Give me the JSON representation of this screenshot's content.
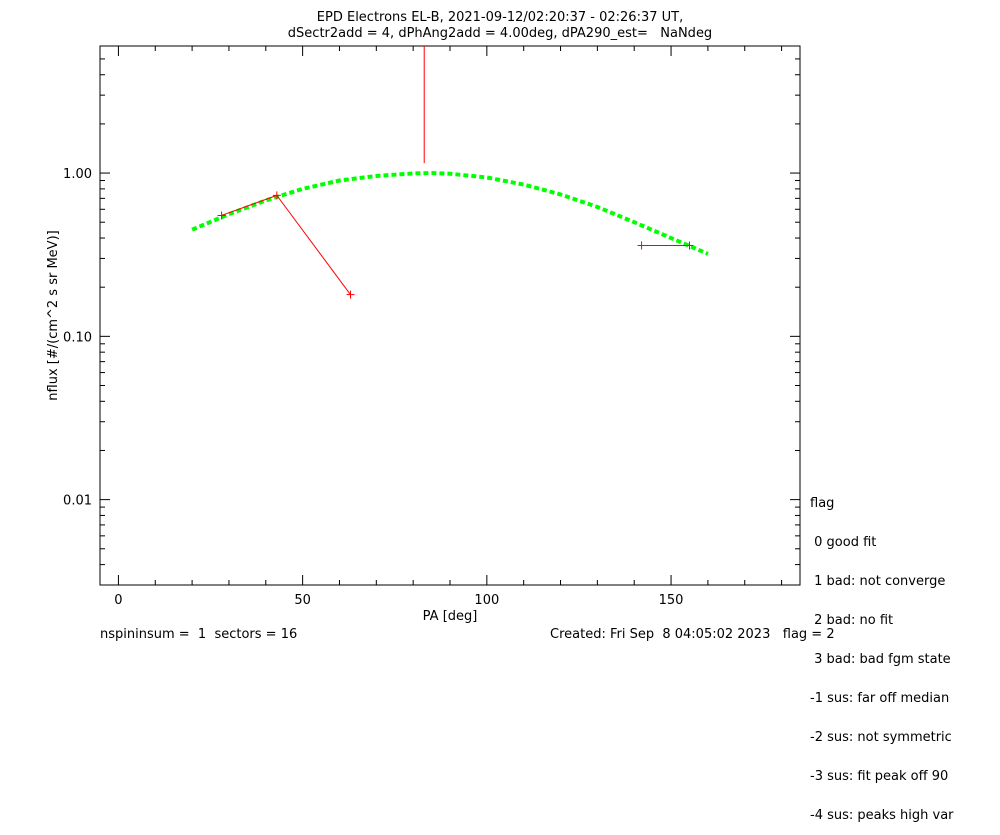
{
  "chart_data": {
    "type": "scatter",
    "title_line1": "EPD Electrons EL-B, 2021-09-12/02:20:37 - 02:26:37 UT,",
    "title_line2": "dSectr2add = 4, dPhAng2add = 4.00deg, dPA290_est=   NaNdeg",
    "xlabel": "PA [deg]",
    "ylabel": "nflux [#/(cm^2 s sr MeV)]",
    "xlim": [
      -5,
      185
    ],
    "ylim": [
      0.003,
      6.0
    ],
    "y_scale": "log",
    "x_ticks": [
      0,
      50,
      100,
      150
    ],
    "x_tick_labels": [
      "0",
      "50",
      "100",
      "150"
    ],
    "y_ticks": [
      0.01,
      0.1,
      1.0
    ],
    "y_tick_labels": [
      "0.01",
      "0.10",
      "1.00"
    ],
    "fit_curve": {
      "color": "#00ff00",
      "style": "dashed",
      "x": [
        20,
        30,
        40,
        50,
        60,
        70,
        80,
        85,
        90,
        100,
        110,
        120,
        130,
        140,
        150,
        160
      ],
      "y": [
        0.45,
        0.56,
        0.68,
        0.8,
        0.9,
        0.96,
        0.995,
        1.0,
        0.99,
        0.94,
        0.85,
        0.74,
        0.62,
        0.5,
        0.4,
        0.32
      ]
    },
    "data_points": [
      {
        "x": 28,
        "y": 0.55
      },
      {
        "x": 43,
        "y": 0.73
      },
      {
        "x": 63,
        "y": 0.18
      },
      {
        "x": 142,
        "y": 0.36
      },
      {
        "x": 155,
        "y": 0.36
      }
    ],
    "data_segments": [
      {
        "x1": 28,
        "y1": 0.55,
        "x2": 43,
        "y2": 0.73
      },
      {
        "x1": 43,
        "y1": 0.73,
        "x2": 63,
        "y2": 0.18
      },
      {
        "x1": 83,
        "y1": 6.0,
        "x2": 83,
        "y2": 1.15
      },
      {
        "x1": 142,
        "y1": 0.36,
        "x2": 155,
        "y2": 0.36
      }
    ],
    "data_color": "#ff0000"
  },
  "legend": {
    "title": "flag",
    "items": [
      " 0 good fit",
      " 1 bad: not converge",
      " 2 bad: no fit",
      " 3 bad: bad fgm state",
      "-1 sus: far off median",
      "-2 sus: not symmetric",
      "-3 sus: fit peak off 90",
      "-4 sus: peaks high var"
    ]
  },
  "footer": {
    "left": "nspininsum =  1  sectors = 16",
    "right": "Created: Fri Sep  8 04:05:02 2023   flag = 2"
  }
}
